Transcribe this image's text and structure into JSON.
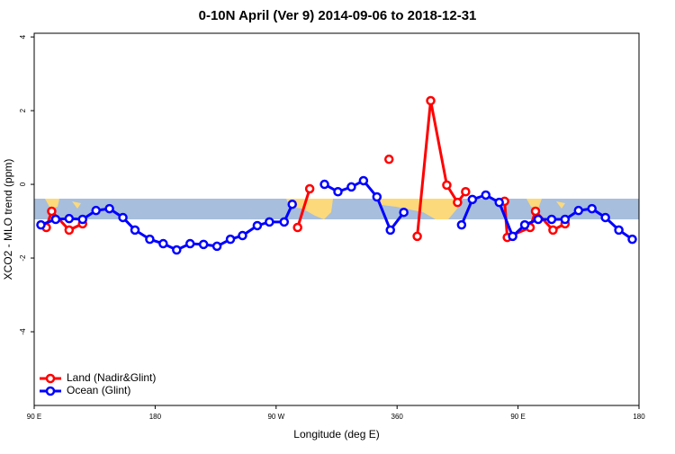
{
  "chart_data": {
    "type": "line",
    "title": "0-10N April (Ver 9)   2014-09-06 to 2018-12-31",
    "x_label": "Longitude (deg E)",
    "y_label": "XCO2 - MLO trend (ppm)",
    "xlim": [
      90,
      540
    ],
    "ylim": [
      -6,
      4.1
    ],
    "xticks": [
      {
        "value": 90,
        "label": "90 E"
      },
      180,
      {
        "value": 270,
        "label": "90 W"
      },
      360,
      {
        "value": 450,
        "label": "90 E"
      },
      {
        "value": 540,
        "label": "180"
      }
    ],
    "yticks": [
      -4,
      -2,
      0,
      2,
      4
    ],
    "grid": false,
    "legend": "bottom-left",
    "series": [
      {
        "name": "Land (Nadir&Glint)",
        "color": "#ff0000",
        "x": [
          99,
          103,
          116,
          126,
          null,
          286,
          295,
          null,
          354,
          null,
          375,
          385,
          397,
          405,
          411,
          null,
          440,
          442,
          459,
          463,
          476,
          485
        ],
        "values": [
          -1.17,
          -0.73,
          -1.24,
          -1.07,
          null,
          -1.17,
          -0.12,
          null,
          0.68,
          null,
          -1.41,
          2.27,
          -0.02,
          -0.49,
          -0.2,
          null,
          -0.46,
          -1.44,
          -1.17,
          -0.73,
          -1.24,
          -1.07
        ]
      },
      {
        "name": "Ocean (Glint)",
        "color": "#0000ff",
        "x": [
          95,
          106,
          116,
          126,
          136,
          146,
          156,
          165,
          176,
          186,
          196,
          206,
          216,
          226,
          236,
          245,
          256,
          265,
          276,
          282,
          null,
          306,
          316,
          326,
          335,
          345,
          355,
          365,
          null,
          408,
          416,
          426,
          436,
          446,
          455,
          465,
          475,
          485,
          495,
          505,
          515,
          525,
          535
        ],
        "values": [
          -1.1,
          -0.95,
          -0.93,
          -0.95,
          -0.71,
          -0.66,
          -0.9,
          -1.24,
          -1.49,
          -1.61,
          -1.78,
          -1.61,
          -1.63,
          -1.68,
          -1.49,
          -1.39,
          -1.12,
          -1.02,
          -1.02,
          -0.54,
          null,
          0,
          -0.2,
          -0.07,
          0.1,
          -0.34,
          -1.24,
          -0.76,
          null,
          -1.1,
          -0.41,
          -0.29,
          -0.49,
          -1.41,
          -1.1,
          -0.95,
          -0.95,
          -0.95,
          -0.71,
          -0.66,
          -0.9,
          -1.24,
          -1.49
        ]
      }
    ]
  }
}
